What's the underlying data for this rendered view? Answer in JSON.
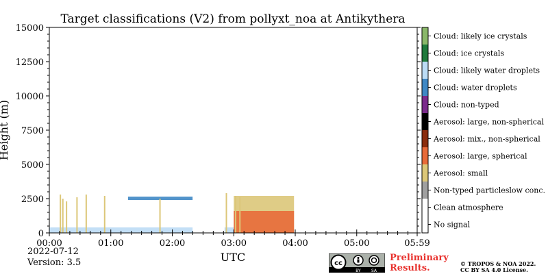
{
  "chart_data": {
    "type": "heatmap",
    "title": "Target classifications (V2) from pollyxt_noa at Antikythera",
    "xlabel": "UTC",
    "ylabel": "Height (m)",
    "x_ticks": [
      "00:00",
      "01:00",
      "02:00",
      "03:00",
      "04:00",
      "05:00",
      "05:59"
    ],
    "x_tick_hours": [
      0,
      1,
      2,
      3,
      4,
      5,
      5.983
    ],
    "xlim_hours": [
      0,
      5.983
    ],
    "y_ticks": [
      "0",
      "2500",
      "5000",
      "7500",
      "10000",
      "12500",
      "15000"
    ],
    "y_tick_values": [
      0,
      2500,
      5000,
      7500,
      10000,
      12500,
      15000
    ],
    "ylim": [
      0,
      15000
    ],
    "legend": {
      "placement": "right colorbar",
      "entries": [
        {
          "label": "Cloud: likely ice crystals",
          "color": "#8ab86a"
        },
        {
          "label": "Cloud: ice crystals",
          "color": "#1f7a3c"
        },
        {
          "label": "Cloud: likely water droplets",
          "color": "#bcdcf5"
        },
        {
          "label": "Cloud: water droplets",
          "color": "#3f88c5"
        },
        {
          "label": "Cloud: non-typed",
          "color": "#7b2b8c"
        },
        {
          "label": "Aerosol: large, non-spherical",
          "color": "#000000"
        },
        {
          "label": "Aerosol: mix., non-spherical",
          "color": "#8b2d0e"
        },
        {
          "label": "Aerosol: large, spherical",
          "color": "#e86b3a"
        },
        {
          "label": "Aerosol: small",
          "color": "#dcc779"
        },
        {
          "label": "Non-typed particleslow conc.",
          "color": "#a0a0a0"
        },
        {
          "label": "Clean atmosphere",
          "color": "#ffffff"
        },
        {
          "label": "No signal",
          "color": "#ffffff"
        }
      ]
    },
    "regions": [
      {
        "class": "Cloud: likely water droplets",
        "t_start": 0.0,
        "t_end": 2.33,
        "h_bottom": 0,
        "h_top": 400
      },
      {
        "class": "Cloud: likely water droplets",
        "t_start": 2.85,
        "t_end": 3.95,
        "h_bottom": 0,
        "h_top": 400
      },
      {
        "class": "Cloud: water droplets",
        "t_start": 1.28,
        "t_end": 2.33,
        "h_bottom": 2400,
        "h_top": 2650
      },
      {
        "class": "Aerosol: small",
        "t_start": 3.0,
        "t_end": 3.98,
        "h_bottom": 0,
        "h_top": 2700
      },
      {
        "class": "Aerosol: large, spherical",
        "t_start": 3.0,
        "t_end": 3.98,
        "h_bottom": 0,
        "h_top": 1600
      }
    ],
    "profiles": [
      {
        "class": "Aerosol: small",
        "t": 0.18,
        "h_top": 2800
      },
      {
        "class": "Aerosol: small",
        "t": 0.22,
        "h_top": 2500
      },
      {
        "class": "Aerosol: small",
        "t": 0.28,
        "h_top": 2300
      },
      {
        "class": "Aerosol: small",
        "t": 0.45,
        "h_top": 2600
      },
      {
        "class": "Aerosol: small",
        "t": 0.6,
        "h_top": 2800
      },
      {
        "class": "Aerosol: small",
        "t": 0.9,
        "h_top": 2700
      },
      {
        "class": "Aerosol: small",
        "t": 1.8,
        "h_top": 2500
      },
      {
        "class": "Aerosol: small",
        "t": 2.88,
        "h_top": 2900
      },
      {
        "class": "Aerosol: small",
        "t": 3.03,
        "h_top": 2700
      },
      {
        "class": "Aerosol: small",
        "t": 3.1,
        "h_top": 2600
      }
    ],
    "grid": false
  },
  "footer": {
    "date": "2022-07-12",
    "version": "Version: 3.5",
    "preliminary_line1": "Preliminary",
    "preliminary_line2": "Results.",
    "copyright_line1": "© TROPOS & NOA 2022.",
    "copyright_line2": "CC BY SA 4.0 License.",
    "cc_badge": [
      "BY",
      "SA"
    ]
  }
}
